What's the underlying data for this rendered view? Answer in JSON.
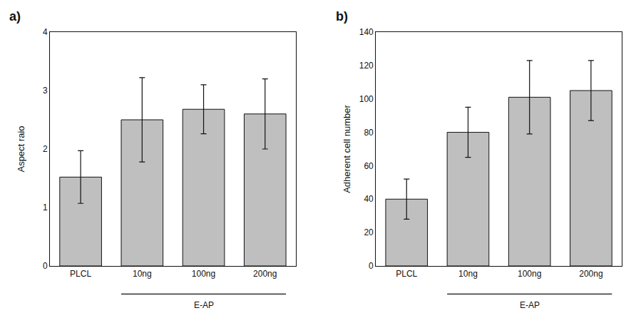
{
  "chart_data": [
    {
      "type": "bar",
      "title": "a)",
      "categories": [
        "PLCL",
        "10ng",
        "100ng",
        "200ng"
      ],
      "values": [
        1.52,
        2.5,
        2.68,
        2.6
      ],
      "errors": [
        0.45,
        0.72,
        0.42,
        0.6
      ],
      "ylabel": "Aspect raio",
      "ylim": [
        0,
        4
      ],
      "yticks": [
        0,
        1,
        2,
        3,
        4
      ],
      "color": "#bfbfbf",
      "grid": false,
      "annotations": [
        {
          "text": "E-AP",
          "from": "10ng",
          "to": "200ng"
        }
      ]
    },
    {
      "type": "bar",
      "title": "b)",
      "categories": [
        "PLCL",
        "10ng",
        "100ng",
        "200ng"
      ],
      "values": [
        40,
        80,
        101,
        105
      ],
      "errors": [
        12,
        15,
        22,
        18
      ],
      "ylabel": "Adherent cell number",
      "ylim": [
        0,
        140
      ],
      "yticks": [
        0,
        20,
        40,
        60,
        80,
        100,
        120,
        140
      ],
      "color": "#bfbfbf",
      "grid": false,
      "annotations": [
        {
          "text": "E-AP",
          "from": "10ng",
          "to": "200ng"
        }
      ]
    }
  ]
}
